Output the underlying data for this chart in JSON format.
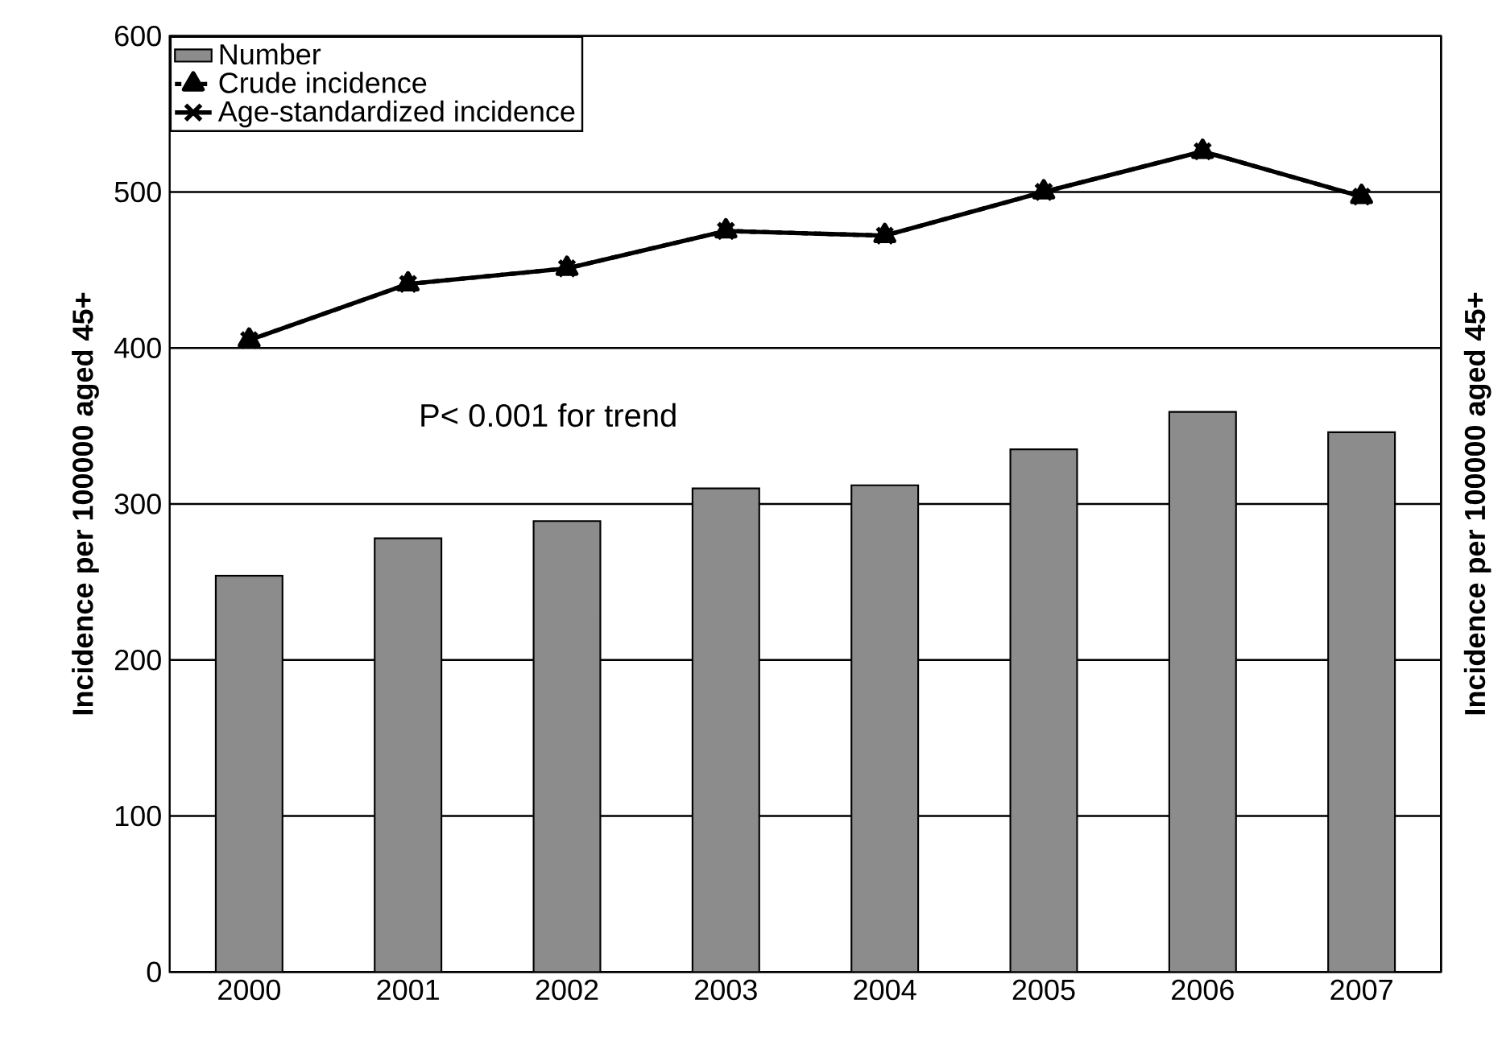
{
  "chart_data": {
    "type": "bar",
    "ylabel": "Incidence per 100000 aged 45+",
    "y2label": "Incidence per 100000 aged 45+",
    "categories": [
      "2000",
      "2001",
      "2002",
      "2003",
      "2004",
      "2005",
      "2006",
      "2007"
    ],
    "series": [
      {
        "name": "Number",
        "color": "#8c8c8c",
        "values": [
          254,
          278,
          289,
          310,
          312,
          335,
          359,
          346
        ]
      },
      {
        "name": "Crude incidence",
        "type": "line",
        "color": "#000000",
        "line_style": "dashed",
        "marker": "triangle",
        "values": [
          405,
          441,
          451,
          475,
          472,
          500,
          526,
          497
        ]
      },
      {
        "name": "Age-standardized incidence",
        "type": "line",
        "color": "#000000",
        "line_style": "solid",
        "marker": "cross",
        "values": [
          405,
          441,
          451,
          475,
          472,
          500,
          526,
          497
        ]
      }
    ],
    "ylim": [
      0,
      600
    ],
    "yticks": [
      0,
      100,
      200,
      300,
      400,
      500,
      600
    ],
    "grid": "y",
    "legend": "top left",
    "annotations": [
      "P< 0.001 for trend"
    ]
  }
}
